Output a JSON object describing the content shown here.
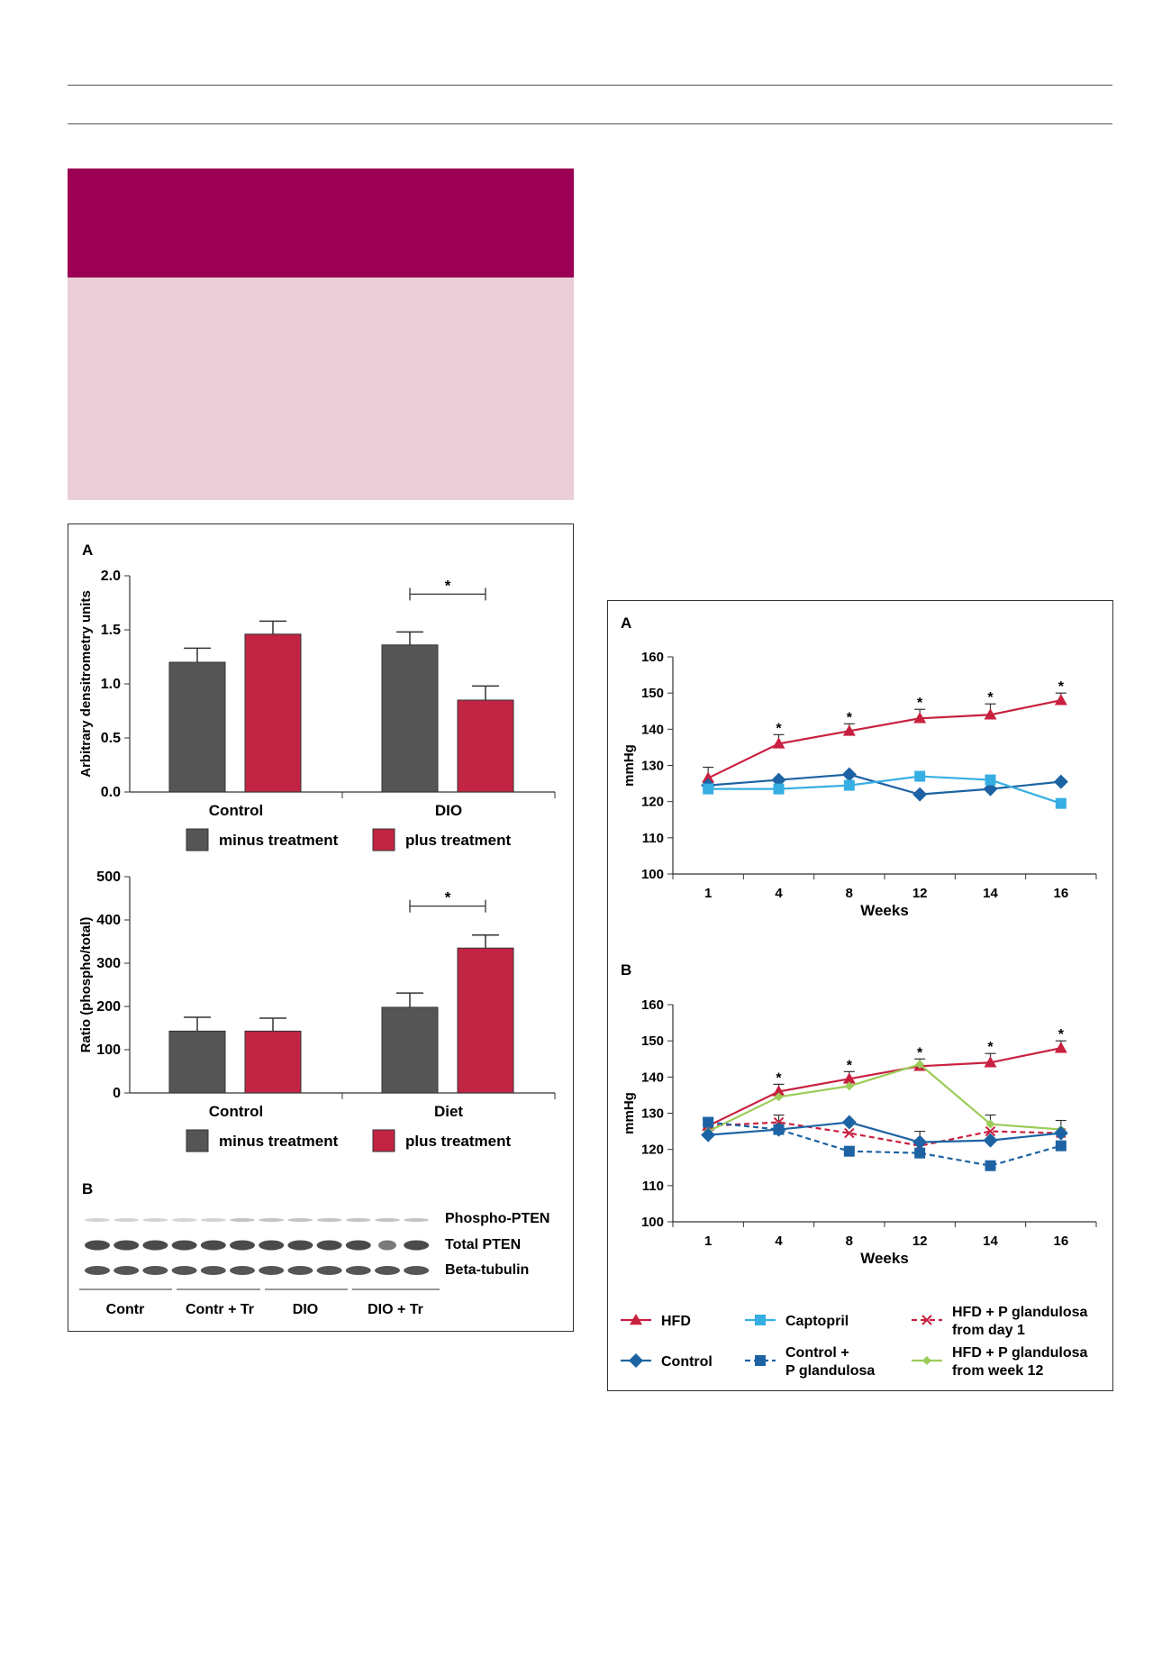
{
  "left_figure": {
    "panel_a_label": "A",
    "panel_b_label": "B",
    "legend": {
      "minus_label": "minus treatment",
      "plus_label": "plus treatment",
      "minus_color": "#555555",
      "plus_color": "#c22443"
    },
    "blot": {
      "rows": [
        "Phospho-PTEN",
        "Total PTEN",
        "Beta-tubulin"
      ],
      "groups": [
        "Contr",
        "Contr + Tr",
        "DIO",
        "DIO + Tr"
      ]
    }
  },
  "right_figure": {
    "panel_a_label": "A",
    "panel_b_label": "B",
    "legend": [
      {
        "label": "HFD",
        "sub": ""
      },
      {
        "label": "Captopril",
        "sub": ""
      },
      {
        "label": "HFD + P glandulosa",
        "sub": "from day 1"
      },
      {
        "label": "Control",
        "sub": ""
      },
      {
        "label": "Control +",
        "sub": "P glandulosa"
      },
      {
        "label": "HFD + P glandulosa",
        "sub": "from week 12"
      }
    ]
  },
  "chart_data": [
    {
      "id": "left-top",
      "type": "bar",
      "ylabel": "Arbitrary densitrometry units",
      "categories": [
        "Control",
        "DIO"
      ],
      "ylim": [
        0,
        2.0
      ],
      "yticks": [
        "0.0",
        "0.5",
        "1.0",
        "1.5",
        "2.0"
      ],
      "series": [
        {
          "name": "minus treatment",
          "values": [
            1.2,
            1.36
          ],
          "errors": [
            0.13,
            0.12
          ]
        },
        {
          "name": "plus treatment",
          "values": [
            1.46,
            0.85
          ],
          "errors": [
            0.12,
            0.13
          ]
        }
      ],
      "significance": {
        "category": "DIO",
        "label": "*",
        "y": 1.83
      }
    },
    {
      "id": "left-bottom",
      "type": "bar",
      "ylabel": "Ratio (phospho/total)",
      "categories": [
        "Control",
        "Diet"
      ],
      "ylim": [
        0,
        500
      ],
      "yticks": [
        "0",
        "100",
        "200",
        "300",
        "400",
        "500"
      ],
      "series": [
        {
          "name": "minus treatment",
          "values": [
            143,
            198
          ],
          "errors": [
            32,
            33
          ]
        },
        {
          "name": "plus treatment",
          "values": [
            143,
            335
          ],
          "errors": [
            30,
            30
          ]
        }
      ],
      "significance": {
        "category": "Diet",
        "label": "*",
        "y": 432
      }
    },
    {
      "id": "right-a",
      "type": "line",
      "xlabel": "Weeks",
      "ylabel": "mmHg",
      "x": [
        "1",
        "4",
        "8",
        "12",
        "14",
        "16"
      ],
      "ylim": [
        100,
        160
      ],
      "yticks": [
        "100",
        "110",
        "120",
        "130",
        "140",
        "150",
        "160"
      ],
      "series": [
        {
          "name": "HFD",
          "values": [
            126.5,
            136,
            139.5,
            143,
            144,
            148
          ],
          "errors": [
            3,
            2.5,
            2,
            2.5,
            3,
            2
          ]
        },
        {
          "name": "Control",
          "values": [
            124.5,
            126,
            127.5,
            122,
            123.5,
            125.5
          ]
        },
        {
          "name": "Captopril",
          "values": [
            123.5,
            123.5,
            124.5,
            127,
            126,
            119.5
          ]
        }
      ],
      "significance": [
        {
          "x": "4",
          "label": "*"
        },
        {
          "x": "8",
          "label": "*"
        },
        {
          "x": "12",
          "label": "*"
        },
        {
          "x": "14",
          "label": "*"
        },
        {
          "x": "16",
          "label": "*"
        }
      ]
    },
    {
      "id": "right-b",
      "type": "line",
      "xlabel": "Weeks",
      "ylabel": "mmHg",
      "x": [
        "1",
        "4",
        "8",
        "12",
        "14",
        "16"
      ],
      "ylim": [
        100,
        160
      ],
      "yticks": [
        "100",
        "110",
        "120",
        "130",
        "140",
        "150",
        "160"
      ],
      "series": [
        {
          "name": "HFD",
          "values": [
            126.5,
            136,
            139.5,
            143,
            144,
            148
          ],
          "errors": [
            2,
            2,
            2,
            2,
            2.5,
            2
          ]
        },
        {
          "name": "HFD + P glandulosa from day 1",
          "values": [
            126.5,
            127.5,
            124.5,
            121,
            125,
            124.5
          ],
          "errors": [
            2,
            2,
            0,
            0,
            0,
            0
          ]
        },
        {
          "name": "HFD + P glandulosa from week 12",
          "values": [
            125,
            134.5,
            137.5,
            143.5,
            127,
            125.5
          ],
          "errors": [
            0,
            0,
            0,
            0,
            2.5,
            2.5
          ]
        },
        {
          "name": "Control",
          "values": [
            124,
            125.5,
            127.5,
            122,
            122.5,
            124.5
          ],
          "errors": [
            0,
            0,
            0,
            3,
            0,
            0
          ]
        },
        {
          "name": "Control + P glandulosa",
          "values": [
            127.5,
            125.5,
            119.5,
            119,
            115.5,
            121
          ]
        }
      ],
      "significance": [
        {
          "x": "4",
          "label": "*"
        },
        {
          "x": "8",
          "label": "*"
        },
        {
          "x": "12",
          "label": "*"
        },
        {
          "x": "14",
          "label": "*"
        },
        {
          "x": "16",
          "label": "*"
        }
      ]
    }
  ]
}
